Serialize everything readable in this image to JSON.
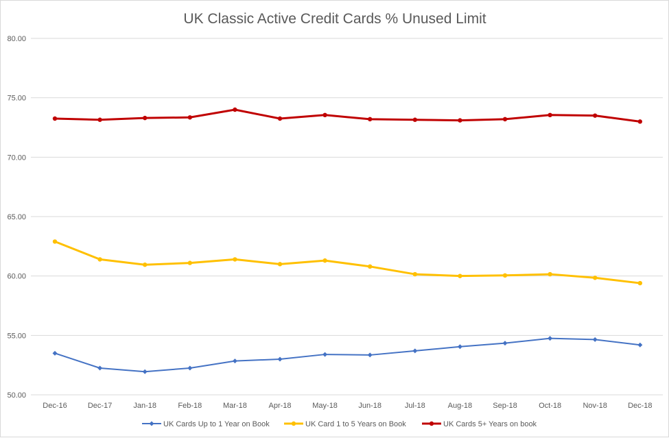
{
  "chart_data": {
    "type": "line",
    "title": "UK Classic Active Credit Cards % Unused Limit",
    "xlabel": "",
    "ylabel": "",
    "ylim": [
      50,
      80
    ],
    "yticks": [
      "50.00",
      "55.00",
      "60.00",
      "65.00",
      "70.00",
      "75.00",
      "80.00"
    ],
    "ytick_values": [
      50,
      55,
      60,
      65,
      70,
      75,
      80
    ],
    "grid": true,
    "legend_position": "bottom",
    "categories": [
      "Dec-16",
      "Dec-17",
      "Jan-18",
      "Feb-18",
      "Mar-18",
      "Apr-18",
      "May-18",
      "Jun-18",
      "Jul-18",
      "Aug-18",
      "Sep-18",
      "Oct-18",
      "Nov-18",
      "Dec-18"
    ],
    "series": [
      {
        "name": "UK Cards Up to 1 Year on Book",
        "color": "#4472c4",
        "marker": "diamond",
        "values": [
          53.5,
          52.25,
          51.95,
          52.25,
          52.85,
          53.0,
          53.4,
          53.35,
          53.7,
          54.05,
          54.35,
          54.75,
          54.65,
          54.2
        ]
      },
      {
        "name": "UK Card 1 to 5 Years on Book",
        "color": "#ffc000",
        "marker": "circle",
        "values": [
          62.9,
          61.4,
          60.95,
          61.1,
          61.4,
          61.0,
          61.3,
          60.8,
          60.15,
          60.0,
          60.05,
          60.15,
          59.85,
          59.4
        ]
      },
      {
        "name": "UK Cards 5+ Years on book",
        "color": "#c00000",
        "marker": "circle",
        "values": [
          73.25,
          73.15,
          73.3,
          73.35,
          74.0,
          73.25,
          73.55,
          73.2,
          73.15,
          73.1,
          73.2,
          73.55,
          73.5,
          73.0
        ]
      }
    ]
  }
}
